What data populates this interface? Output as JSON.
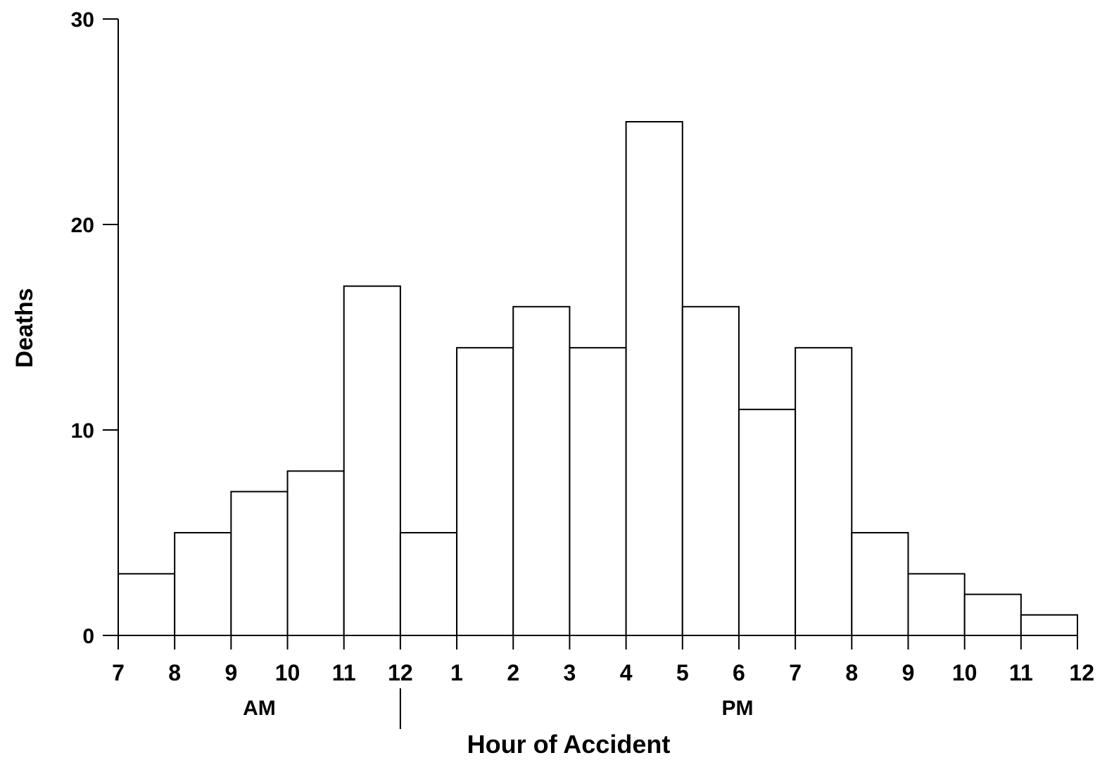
{
  "chart_data": {
    "type": "bar",
    "title": "",
    "xlabel": "Hour of Accident",
    "ylabel": "Deaths",
    "ylim": [
      0,
      30
    ],
    "yticks": [
      "0",
      "10",
      "20",
      "30"
    ],
    "xticks": [
      "7",
      "8",
      "9",
      "10",
      "11",
      "12",
      "1",
      "2",
      "3",
      "4",
      "5",
      "6",
      "7",
      "8",
      "9",
      "10",
      "11",
      "12"
    ],
    "period_labels": {
      "am": "AM",
      "pm": "PM"
    },
    "grid": false,
    "bins": [
      {
        "start": "7 AM",
        "end": "8 AM",
        "value": 3
      },
      {
        "start": "8 AM",
        "end": "9 AM",
        "value": 5
      },
      {
        "start": "9 AM",
        "end": "10 AM",
        "value": 7
      },
      {
        "start": "10 AM",
        "end": "11 AM",
        "value": 8
      },
      {
        "start": "11 AM",
        "end": "12 PM",
        "value": 17
      },
      {
        "start": "12 PM",
        "end": "1 PM",
        "value": 5
      },
      {
        "start": "1 PM",
        "end": "2 PM",
        "value": 14
      },
      {
        "start": "2 PM",
        "end": "3 PM",
        "value": 16
      },
      {
        "start": "3 PM",
        "end": "4 PM",
        "value": 14
      },
      {
        "start": "4 PM",
        "end": "5 PM",
        "value": 25
      },
      {
        "start": "5 PM",
        "end": "6 PM",
        "value": 16
      },
      {
        "start": "6 PM",
        "end": "7 PM",
        "value": 11
      },
      {
        "start": "7 PM",
        "end": "8 PM",
        "value": 14
      },
      {
        "start": "8 PM",
        "end": "9 PM",
        "value": 5
      },
      {
        "start": "9 PM",
        "end": "10 PM",
        "value": 3
      },
      {
        "start": "10 PM",
        "end": "11 PM",
        "value": 2
      },
      {
        "start": "11 PM",
        "end": "12 AM",
        "value": 1
      }
    ]
  }
}
